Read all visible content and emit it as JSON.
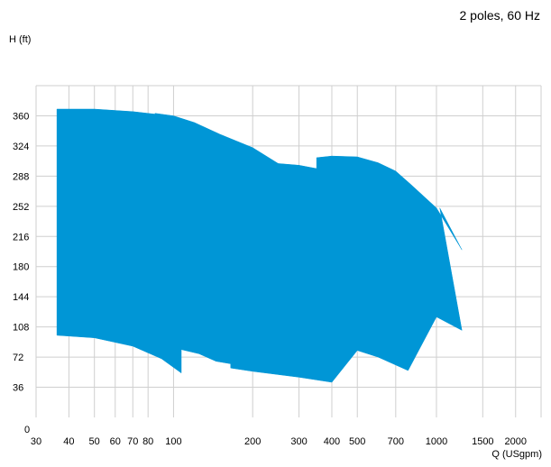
{
  "chart_data": {
    "type": "area",
    "subtitle": "2 poles, 60 Hz",
    "xlabel": "Q (USgpm)",
    "ylabel": "H (ft)",
    "x_scale": "log",
    "xlim": [
      30,
      2500
    ],
    "ylim": [
      0,
      396
    ],
    "x_ticks": [
      30,
      40,
      50,
      60,
      70,
      80,
      100,
      200,
      300,
      400,
      500,
      700,
      1000,
      1500,
      2000
    ],
    "x_tick_labels": [
      "30",
      "40",
      "50",
      "60",
      "70",
      "80",
      "100",
      "200",
      "300",
      "400",
      "500",
      "700",
      "1000",
      "1500",
      "2000"
    ],
    "y_ticks": [
      0,
      36,
      72,
      108,
      144,
      180,
      216,
      252,
      288,
      324,
      360
    ],
    "y_tick_labels": [
      "0",
      "36",
      "72",
      "108",
      "144",
      "180",
      "216",
      "252",
      "288",
      "324",
      "360"
    ],
    "grid": true,
    "fill_color": "#0096d6",
    "series": [
      {
        "name": "",
        "points": [
          [
            36,
            368
          ],
          [
            50,
            368
          ],
          [
            70,
            365
          ],
          [
            85,
            362
          ],
          [
            85,
            363
          ],
          [
            100,
            360
          ],
          [
            120,
            352
          ],
          [
            150,
            338
          ],
          [
            200,
            322
          ],
          [
            250,
            303
          ],
          [
            300,
            301
          ],
          [
            350,
            297
          ],
          [
            350,
            310
          ],
          [
            400,
            312
          ],
          [
            500,
            311
          ],
          [
            600,
            304
          ],
          [
            700,
            294
          ],
          [
            800,
            278
          ],
          [
            1000,
            250
          ],
          [
            1250,
            200
          ],
          [
            1030,
            250
          ],
          [
            1250,
            104
          ],
          [
            1000,
            120
          ],
          [
            780,
            56
          ],
          [
            600,
            72
          ],
          [
            500,
            80
          ],
          [
            400,
            42
          ],
          [
            300,
            48
          ],
          [
            200,
            55
          ],
          [
            165,
            59
          ],
          [
            165,
            64
          ],
          [
            145,
            67
          ],
          [
            125,
            76
          ],
          [
            107,
            81
          ],
          [
            107,
            53
          ],
          [
            90,
            70
          ],
          [
            70,
            85
          ],
          [
            50,
            95
          ],
          [
            36,
            98
          ]
        ]
      }
    ]
  }
}
